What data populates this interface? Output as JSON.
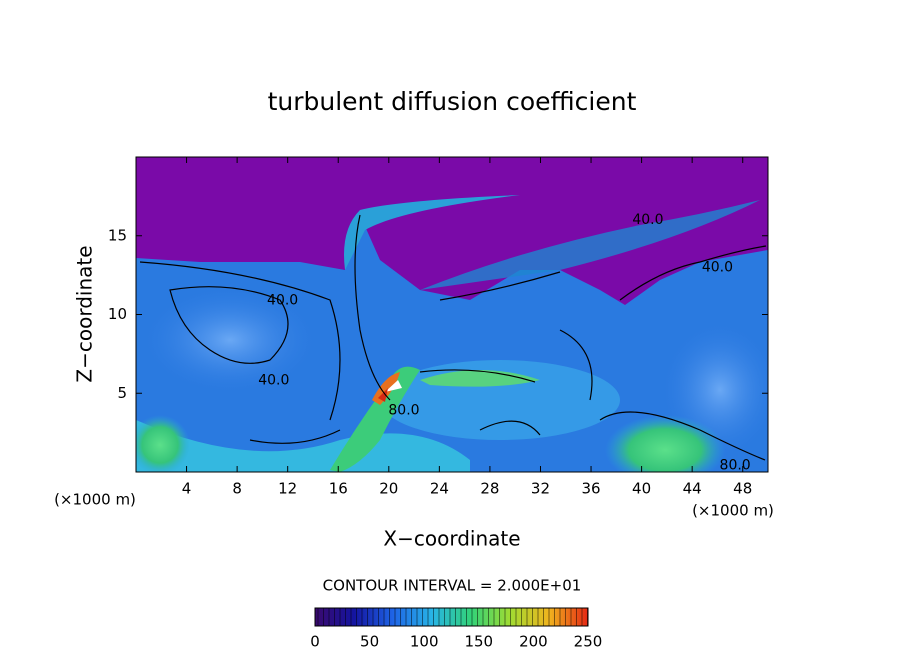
{
  "chart_data": {
    "type": "contour",
    "title": "turbulent diffusion coefficient",
    "xlabel": "X−coordinate",
    "ylabel": "Z−coordinate",
    "xaxis_unit": "(×1000 m)",
    "yaxis_unit": "(×1000 m)",
    "xlim": [
      0,
      50
    ],
    "ylim": [
      0,
      20
    ],
    "xticks": [
      4,
      8,
      12,
      16,
      20,
      24,
      28,
      32,
      36,
      40,
      44,
      48
    ],
    "yticks": [
      5,
      10,
      15
    ],
    "contour_interval_label": "CONTOUR INTERVAL = 2.000E+01",
    "contour_labels": [
      {
        "label": "40.0",
        "x": 40.5,
        "y": 16.0
      },
      {
        "label": "40.0",
        "x": 46.0,
        "y": 13.0
      },
      {
        "label": "40.0",
        "x": 11.6,
        "y": 10.9
      },
      {
        "label": "40.0",
        "x": 10.9,
        "y": 5.8
      },
      {
        "label": "80.0",
        "x": 21.2,
        "y": 3.9
      },
      {
        "label": "80.0",
        "x": 47.4,
        "y": 0.4
      }
    ],
    "colorbar": {
      "lim": [
        0,
        250
      ],
      "ticks": [
        0,
        50,
        100,
        150,
        200,
        250
      ],
      "colormap": [
        "#3a0a6e",
        "#1414a0",
        "#1e64e6",
        "#28b4e6",
        "#32d278",
        "#a0dc32",
        "#f0b41e",
        "#e62814"
      ]
    }
  }
}
